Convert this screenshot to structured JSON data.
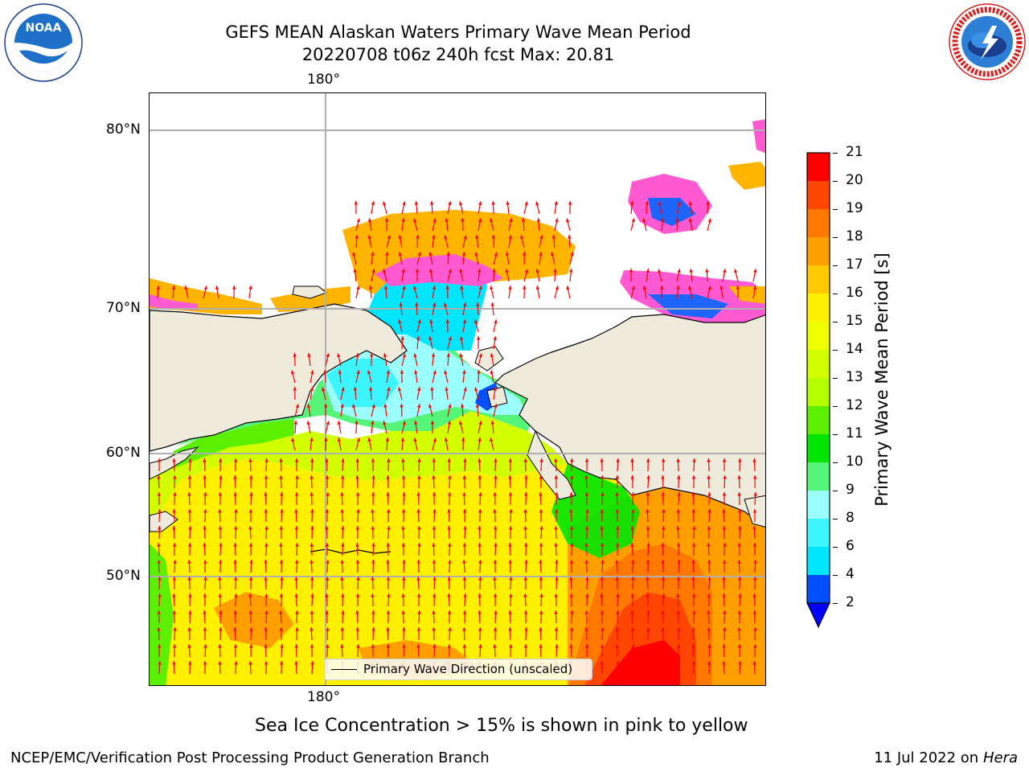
{
  "header": {
    "title_line1": "GEFS MEAN Alaskan Waters Primary Wave Mean Period",
    "title_line2": "20220708 t06z 240h fcst   Max: 20.81"
  },
  "logos": {
    "left": {
      "name": "noaa-logo",
      "text": "NOAA"
    },
    "right": {
      "name": "nws-logo",
      "text": "NATIONAL WEATHER SERVICE"
    }
  },
  "map": {
    "lon_labels": {
      "top": "180°",
      "bottom": "180°"
    },
    "lat_labels": [
      "80°N",
      "70°N",
      "60°N",
      "50°N"
    ],
    "legend": {
      "label": "Primary Wave Direction (unscaled)"
    },
    "colors": {
      "land": "#efebdc",
      "ocean_default": "#ffffff",
      "arrow": "#ff0000",
      "grid": "#b0b0b0",
      "coast": "#000000"
    }
  },
  "colorbar": {
    "label": "Primary Wave Mean Period [s]",
    "ticks": [
      "2",
      "4",
      "6",
      "8",
      "9",
      "10",
      "11",
      "12",
      "13",
      "14",
      "15",
      "16",
      "17",
      "18",
      "19",
      "20",
      "21"
    ],
    "colors": [
      "#0050ff",
      "#00e6ff",
      "#3cf5ff",
      "#9cffff",
      "#55f57a",
      "#00e600",
      "#5cf000",
      "#b4ff00",
      "#d2ff00",
      "#f0ff00",
      "#fff000",
      "#ffc800",
      "#ffa000",
      "#ff7800",
      "#ff4600",
      "#ff0000"
    ],
    "extend_color": "#0000ff"
  },
  "notes": {
    "sea_ice": "Sea Ice Concentration > 15% is shown in pink to yellow"
  },
  "footer": {
    "left": "NCEP/EMC/Verification Post Processing Product Generation Branch",
    "right_date": "11 Jul 2022 on ",
    "right_host": "Hera"
  }
}
